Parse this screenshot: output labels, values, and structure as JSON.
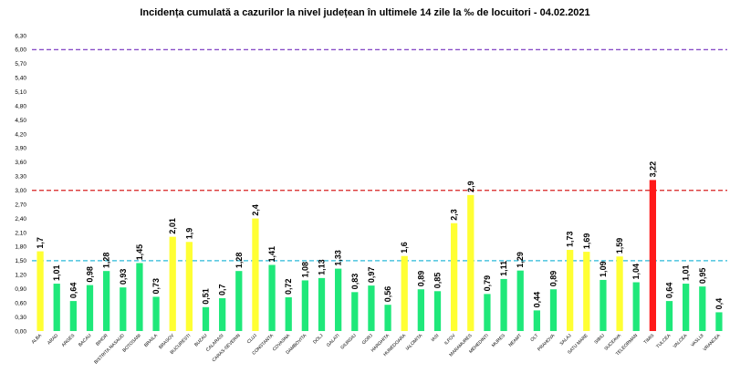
{
  "chart_data": {
    "type": "bar",
    "title": "Incidența cumulată a cazurilor la nivel județean în ultimele 14 zile la ‰ de locuitori - 04.02.2021",
    "xlabel": "",
    "ylabel": "",
    "ylim": [
      0,
      6.3
    ],
    "ytick_step": 0.3,
    "yticks": [
      "0,00",
      "0,30",
      "0,60",
      "0,90",
      "1,20",
      "1,50",
      "1,80",
      "2,10",
      "2,40",
      "2,70",
      "3,00",
      "3,30",
      "3,60",
      "3,90",
      "4,20",
      "4,50",
      "4,80",
      "5,10",
      "5,40",
      "5,70",
      "6,00",
      "6,30"
    ],
    "grid": false,
    "legend": "none",
    "categories": [
      "ALBA",
      "ARAD",
      "ARGES",
      "BACAU",
      "BIHOR",
      "BISTRITA NASAUD",
      "BOTOSANI",
      "BRAILA",
      "BRASOV",
      "BUCURESTI",
      "BUZAU",
      "CALARASI",
      "CARAS-SEVERIN",
      "CLUJ",
      "CONSTANTA",
      "COVASNA",
      "DAMBOVITA",
      "DOLJ",
      "GALATI",
      "GIURGIU",
      "GORJ",
      "HARGHITA",
      "HUNEDOARA",
      "IALOMITA",
      "IASI",
      "ILFOV",
      "MARAMURES",
      "MEHEDINTI",
      "MURES",
      "NEAMT",
      "OLT",
      "PRAHOVA",
      "SALAJ",
      "SATU MARE",
      "SIBIU",
      "SUCEAVA",
      "TELEORMAN",
      "TIMIS",
      "TULCEA",
      "VALCEA",
      "VASLUI",
      "VRANCEA"
    ],
    "values": [
      1.7,
      1.01,
      0.64,
      0.98,
      1.28,
      0.93,
      1.45,
      0.73,
      2.01,
      1.9,
      0.51,
      0.7,
      1.28,
      2.4,
      1.41,
      0.72,
      1.08,
      1.13,
      1.33,
      0.83,
      0.97,
      0.56,
      1.6,
      0.89,
      0.85,
      2.3,
      2.9,
      0.79,
      1.11,
      1.29,
      0.44,
      0.89,
      1.73,
      1.69,
      1.09,
      1.59,
      1.04,
      3.22,
      0.64,
      1.01,
      0.95,
      0.4
    ],
    "value_labels": [
      "1,7",
      "1,01",
      "0,64",
      "0,98",
      "1,28",
      "0,93",
      "1,45",
      "0,73",
      "2,01",
      "1,9",
      "0,51",
      "0,7",
      "1,28",
      "2,4",
      "1,41",
      "0,72",
      "1,08",
      "1,13",
      "1,33",
      "0,83",
      "0,97",
      "0,56",
      "1,6",
      "0,89",
      "0,85",
      "2,3",
      "2,9",
      "0,79",
      "1,11",
      "1,29",
      "0,44",
      "0,89",
      "1,73",
      "1,69",
      "1,09",
      "1,59",
      "1,04",
      "3,22",
      "0,64",
      "1,01",
      "0,95",
      "0,4"
    ],
    "colors": {
      "low": "#1fe87a",
      "medium": "#ffff33",
      "high": "#ff1a1a"
    },
    "thresholds": [
      {
        "value": 1.5,
        "color": "#2bb8d8"
      },
      {
        "value": 3.0,
        "color": "#d62020"
      },
      {
        "value": 6.0,
        "color": "#8a4fc8"
      }
    ]
  }
}
